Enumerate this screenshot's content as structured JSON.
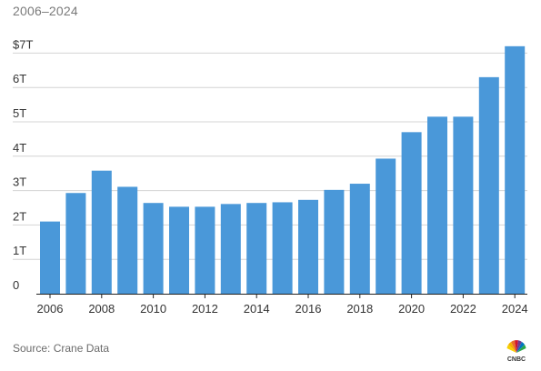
{
  "header": {
    "subtitle": "2006–2024"
  },
  "footer": {
    "source": "Source: Crane Data",
    "logo": "CNBC"
  },
  "colors": {
    "bar": "#4a98d9",
    "grid": "#d4d4d4",
    "axis": "#222222"
  },
  "chart_data": {
    "type": "bar",
    "title": "",
    "subtitle": "2006–2024",
    "xlabel": "",
    "ylabel": "",
    "categories": [
      "2006",
      "2007",
      "2008",
      "2009",
      "2010",
      "2011",
      "2012",
      "2013",
      "2014",
      "2015",
      "2016",
      "2017",
      "2018",
      "2019",
      "2020",
      "2021",
      "2022",
      "2023",
      "2024"
    ],
    "x_tick_labels": [
      "2006",
      "2008",
      "2010",
      "2012",
      "2014",
      "2016",
      "2018",
      "2020",
      "2022",
      "2024"
    ],
    "y_ticks": [
      0,
      1,
      2,
      3,
      4,
      5,
      6,
      7
    ],
    "y_tick_labels": [
      "0",
      "1T",
      "2T",
      "3T",
      "4T",
      "5T",
      "6T",
      "$7T"
    ],
    "series": [
      {
        "values": [
          2.1,
          2.93,
          3.58,
          3.11,
          2.64,
          2.53,
          2.53,
          2.61,
          2.64,
          2.66,
          2.73,
          3.02,
          3.2,
          3.93,
          4.7,
          5.15,
          5.15,
          6.3,
          7.2
        ]
      }
    ],
    "ylim": [
      0,
      7.6
    ],
    "grid": true,
    "legend": "none"
  }
}
